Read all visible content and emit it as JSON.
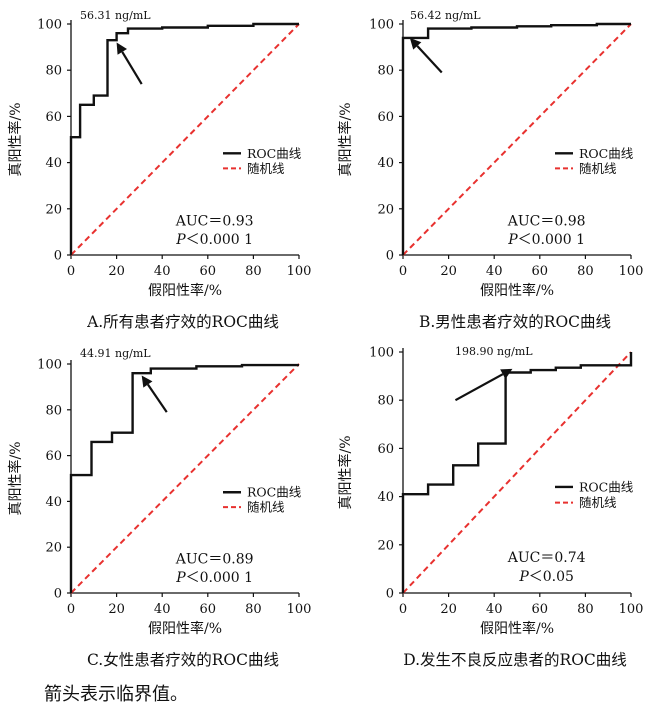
{
  "note": "箭头表示临界值。",
  "chart_data": [
    {
      "type": "line",
      "caption": "A.所有患者疗效的ROC曲线",
      "xlabel": "假阳性率/%",
      "ylabel": "真阳性率/%",
      "xlim": [
        0,
        100
      ],
      "ylim": [
        0,
        100
      ],
      "xticks": [
        "0",
        "20",
        "40",
        "60",
        "80",
        "100"
      ],
      "yticks": [
        "0",
        "20",
        "40",
        "60",
        "80",
        "100"
      ],
      "threshold_label": "56.31 ng/mL",
      "threshold_point": [
        20,
        92
      ],
      "auc": "AUC＝0.93",
      "p_sym": "P",
      "p_rest": "＜0.000 1",
      "legend": [
        "ROC曲线",
        "随机线"
      ],
      "series": [
        {
          "x": [
            0,
            0,
            4,
            4,
            10,
            10,
            16,
            16,
            20,
            20,
            25,
            25,
            40,
            40,
            60,
            60,
            80,
            80,
            100
          ],
          "y": [
            0,
            51,
            51,
            65,
            65,
            69,
            69,
            93,
            93,
            96,
            96,
            98,
            98,
            98.5,
            98.5,
            99.2,
            99.2,
            100,
            100
          ]
        },
        {
          "x": [
            0,
            100
          ],
          "y": [
            0,
            100
          ]
        }
      ]
    },
    {
      "type": "line",
      "caption": "B.男性患者疗效的ROC曲线",
      "xlabel": "假阳性率/%",
      "ylabel": "真阳性率/%",
      "xlim": [
        0,
        100
      ],
      "ylim": [
        0,
        100
      ],
      "xticks": [
        "0",
        "20",
        "40",
        "60",
        "80",
        "100"
      ],
      "yticks": [
        "0",
        "20",
        "40",
        "60",
        "80",
        "100"
      ],
      "threshold_label": "56.42 ng/mL",
      "threshold_point": [
        3,
        94
      ],
      "auc": "AUC＝0.98",
      "p_sym": "P",
      "p_rest": "＜0.000 1",
      "legend": [
        "ROC曲线",
        "随机线"
      ],
      "series": [
        {
          "x": [
            0,
            0,
            11,
            11,
            30,
            30,
            50,
            50,
            65,
            65,
            85,
            85,
            100
          ],
          "y": [
            0,
            94,
            94,
            98,
            98,
            98.5,
            98.5,
            99,
            99,
            99.5,
            99.5,
            100,
            100
          ]
        },
        {
          "x": [
            0,
            100
          ],
          "y": [
            0,
            100
          ]
        }
      ]
    },
    {
      "type": "line",
      "caption": "C.女性患者疗效的ROC曲线",
      "xlabel": "假阳性率/%",
      "ylabel": "真阳性率/%",
      "xlim": [
        0,
        100
      ],
      "ylim": [
        0,
        100
      ],
      "xticks": [
        "0",
        "20",
        "40",
        "60",
        "80",
        "100"
      ],
      "yticks": [
        "0",
        "20",
        "40",
        "60",
        "80",
        "100"
      ],
      "threshold_label": "44.91 ng/mL",
      "threshold_point": [
        31,
        95
      ],
      "auc": "AUC＝0.89",
      "p_sym": "P",
      "p_rest": "＜0.000 1",
      "legend": [
        "ROC曲线",
        "随机线"
      ],
      "series": [
        {
          "x": [
            0,
            0,
            9,
            9,
            18,
            18,
            27,
            27,
            35,
            35,
            55,
            55,
            75,
            75,
            100
          ],
          "y": [
            0,
            51.5,
            51.5,
            66,
            66,
            70,
            70,
            96,
            96,
            98,
            98,
            99,
            99,
            99.5,
            99.5
          ]
        },
        {
          "x": [
            0,
            100
          ],
          "y": [
            0,
            100
          ]
        }
      ]
    },
    {
      "type": "line",
      "caption": "D.发生不良反应患者的ROC曲线",
      "xlabel": "假阳性率/%",
      "ylabel": "真阳性率/%",
      "xlim": [
        0,
        100
      ],
      "ylim": [
        0,
        100
      ],
      "xticks": [
        "0",
        "20",
        "40",
        "60",
        "80",
        "100"
      ],
      "yticks": [
        "0",
        "20",
        "40",
        "60",
        "80",
        "100"
      ],
      "threshold_label": "198.90 ng/mL",
      "threshold_point": [
        48,
        93
      ],
      "auc": "AUC＝0.74",
      "p_sym": "P",
      "p_rest": "＜0.05",
      "legend": [
        "ROC曲线",
        "随机线"
      ],
      "series": [
        {
          "x": [
            0,
            0,
            11,
            11,
            22,
            22,
            33,
            33,
            45,
            45,
            56,
            56,
            67,
            67,
            78,
            78,
            89,
            89,
            100,
            100
          ],
          "y": [
            0,
            41,
            41,
            45,
            45,
            53,
            53,
            62,
            62,
            91.5,
            91.5,
            92.5,
            92.5,
            93.5,
            93.5,
            94.5,
            94.5,
            94.5,
            94.5,
            100
          ]
        },
        {
          "x": [
            0,
            100
          ],
          "y": [
            0,
            100
          ]
        }
      ]
    }
  ]
}
